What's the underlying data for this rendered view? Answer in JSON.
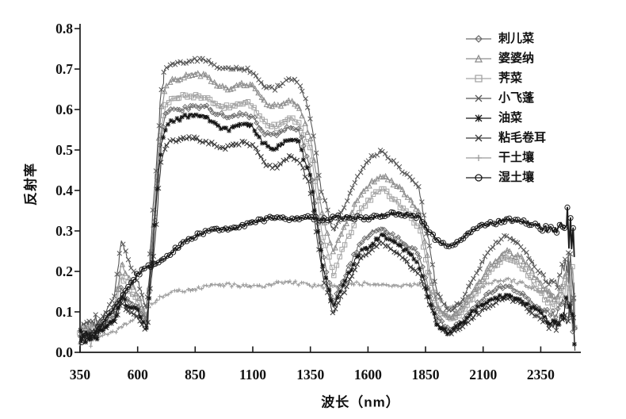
{
  "figure": {
    "background": "#ffffff",
    "ink_color": "#1a1a1a"
  },
  "chart_data": {
    "type": "line",
    "title": "",
    "xlabel": "波长（nm）",
    "ylabel": "反射率",
    "xlim": [
      350,
      2500
    ],
    "ylim": [
      0,
      0.8
    ],
    "grid": false,
    "legend_position": "upper-right",
    "xticks": [
      350,
      600,
      850,
      1100,
      1350,
      1600,
      1850,
      2100,
      2350
    ],
    "xtick_labels": [
      "350",
      "600",
      "850",
      "1100",
      "1350",
      "1600",
      "1850",
      "2100",
      "2350"
    ],
    "yticks": [
      0,
      0.1,
      0.2,
      0.3,
      0.4,
      0.5,
      0.6,
      0.7,
      0.8
    ],
    "ytick_labels": [
      "0.0",
      "0.1",
      "0.2",
      "0.3",
      "0.4",
      "0.5",
      "0.6",
      "0.7",
      "0.8"
    ],
    "wavelengths_nm": [
      350,
      400,
      450,
      500,
      530,
      560,
      600,
      640,
      680,
      700,
      720,
      750,
      800,
      850,
      900,
      950,
      1000,
      1060,
      1100,
      1150,
      1200,
      1260,
      1300,
      1350,
      1400,
      1450,
      1500,
      1560,
      1620,
      1660,
      1700,
      1760,
      1820,
      1870,
      1900,
      1950,
      2000,
      2060,
      2130,
      2200,
      2260,
      2320,
      2380,
      2420,
      2460,
      2500
    ],
    "series": [
      {
        "name": "刺儿菜",
        "marker": "diamond",
        "color": "#6f6f6f",
        "values": [
          0.045,
          0.05,
          0.065,
          0.09,
          0.16,
          0.13,
          0.11,
          0.07,
          0.37,
          0.53,
          0.585,
          0.6,
          0.605,
          0.61,
          0.605,
          0.585,
          0.58,
          0.59,
          0.585,
          0.545,
          0.535,
          0.555,
          0.545,
          0.46,
          0.25,
          0.125,
          0.19,
          0.26,
          0.3,
          0.31,
          0.295,
          0.27,
          0.24,
          0.14,
          0.085,
          0.06,
          0.075,
          0.11,
          0.145,
          0.165,
          0.15,
          0.12,
          0.095,
          0.09,
          0.14,
          0.11
        ]
      },
      {
        "name": "婆婆纳",
        "marker": "triangle",
        "color": "#8d8d8d",
        "values": [
          0.05,
          0.06,
          0.075,
          0.11,
          0.22,
          0.18,
          0.14,
          0.085,
          0.42,
          0.6,
          0.655,
          0.675,
          0.68,
          0.685,
          0.68,
          0.66,
          0.655,
          0.665,
          0.655,
          0.615,
          0.605,
          0.625,
          0.615,
          0.535,
          0.34,
          0.24,
          0.31,
          0.385,
          0.425,
          0.44,
          0.42,
          0.39,
          0.35,
          0.2,
          0.12,
          0.085,
          0.1,
          0.15,
          0.215,
          0.255,
          0.235,
          0.19,
          0.145,
          0.135,
          0.19,
          0.15
        ]
      },
      {
        "name": "荠菜",
        "marker": "square",
        "color": "#a4a4a4",
        "values": [
          0.05,
          0.055,
          0.07,
          0.1,
          0.19,
          0.155,
          0.13,
          0.08,
          0.39,
          0.55,
          0.61,
          0.625,
          0.63,
          0.635,
          0.63,
          0.61,
          0.605,
          0.615,
          0.61,
          0.57,
          0.56,
          0.58,
          0.57,
          0.5,
          0.3,
          0.19,
          0.27,
          0.345,
          0.385,
          0.4,
          0.385,
          0.355,
          0.315,
          0.18,
          0.11,
          0.078,
          0.095,
          0.14,
          0.2,
          0.235,
          0.215,
          0.17,
          0.13,
          0.12,
          0.17,
          0.14
        ]
      },
      {
        "name": "小飞蓬",
        "marker": "x",
        "color": "#565656",
        "values": [
          0.06,
          0.07,
          0.09,
          0.14,
          0.275,
          0.23,
          0.175,
          0.1,
          0.45,
          0.63,
          0.7,
          0.715,
          0.72,
          0.725,
          0.72,
          0.7,
          0.695,
          0.705,
          0.695,
          0.66,
          0.65,
          0.67,
          0.665,
          0.59,
          0.4,
          0.3,
          0.36,
          0.44,
          0.485,
          0.5,
          0.48,
          0.445,
          0.405,
          0.25,
          0.15,
          0.105,
          0.125,
          0.185,
          0.25,
          0.29,
          0.27,
          0.22,
          0.175,
          0.165,
          0.23,
          0.18
        ]
      },
      {
        "name": "油菜",
        "marker": "asterisk",
        "color": "#151515",
        "values": [
          0.04,
          0.045,
          0.06,
          0.08,
          0.135,
          0.11,
          0.1,
          0.06,
          0.36,
          0.51,
          0.555,
          0.575,
          0.58,
          0.585,
          0.58,
          0.56,
          0.555,
          0.565,
          0.555,
          0.51,
          0.5,
          0.53,
          0.52,
          0.435,
          0.225,
          0.105,
          0.175,
          0.245,
          0.275,
          0.29,
          0.275,
          0.25,
          0.22,
          0.125,
          0.072,
          0.048,
          0.065,
          0.1,
          0.13,
          0.145,
          0.13,
          0.105,
          0.078,
          0.072,
          0.115,
          0.085
        ]
      },
      {
        "name": "粘毛卷耳",
        "marker": "x",
        "color": "#383838",
        "values": [
          0.04,
          0.045,
          0.055,
          0.075,
          0.12,
          0.1,
          0.09,
          0.055,
          0.32,
          0.46,
          0.505,
          0.52,
          0.525,
          0.53,
          0.525,
          0.51,
          0.505,
          0.515,
          0.51,
          0.47,
          0.46,
          0.485,
          0.475,
          0.4,
          0.2,
          0.095,
          0.16,
          0.225,
          0.255,
          0.27,
          0.255,
          0.23,
          0.2,
          0.115,
          0.065,
          0.042,
          0.058,
          0.09,
          0.118,
          0.133,
          0.12,
          0.095,
          0.07,
          0.065,
          0.105,
          0.078
        ]
      },
      {
        "name": "干土壤",
        "marker": "plus",
        "color": "#9a9a9a",
        "values": [
          0.015,
          0.028,
          0.04,
          0.055,
          0.065,
          0.075,
          0.09,
          0.11,
          0.125,
          0.133,
          0.14,
          0.15,
          0.157,
          0.16,
          0.162,
          0.164,
          0.165,
          0.166,
          0.167,
          0.167,
          0.168,
          0.169,
          0.169,
          0.168,
          0.165,
          0.165,
          0.166,
          0.167,
          0.168,
          0.168,
          0.167,
          0.167,
          0.165,
          0.152,
          0.133,
          0.112,
          0.125,
          0.15,
          0.17,
          0.18,
          0.175,
          0.16,
          0.142,
          0.133,
          0.158,
          0.138
        ]
      },
      {
        "name": "湿土壤",
        "marker": "circle",
        "color": "#1b1b1b",
        "values": [
          0.03,
          0.05,
          0.075,
          0.11,
          0.135,
          0.155,
          0.19,
          0.21,
          0.22,
          0.23,
          0.237,
          0.25,
          0.27,
          0.285,
          0.296,
          0.305,
          0.31,
          0.316,
          0.32,
          0.325,
          0.33,
          0.332,
          0.334,
          0.335,
          0.326,
          0.33,
          0.332,
          0.335,
          0.336,
          0.34,
          0.34,
          0.338,
          0.334,
          0.3,
          0.278,
          0.265,
          0.275,
          0.3,
          0.32,
          0.33,
          0.326,
          0.312,
          0.3,
          0.305,
          0.33,
          0.285
        ]
      }
    ]
  }
}
